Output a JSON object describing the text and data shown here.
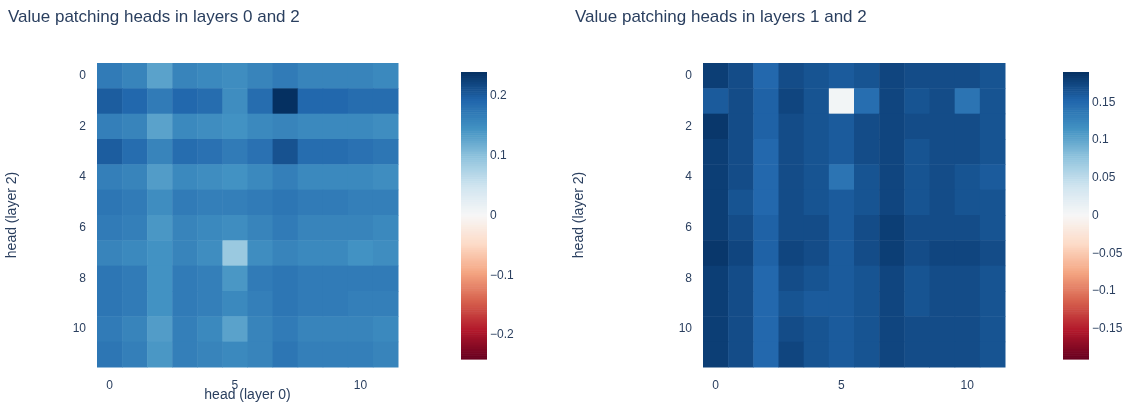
{
  "chart_data": [
    {
      "type": "heatmap",
      "title": "Value patching heads in layers 0 and 2",
      "xlabel": "head (layer 0)",
      "ylabel": "head (layer 2)",
      "categories": [
        "0",
        null,
        null,
        null,
        null,
        "5",
        null,
        null,
        null,
        null,
        "10",
        null
      ],
      "y_categories": [
        "0",
        null,
        "2",
        null,
        "4",
        null,
        "6",
        null,
        "8",
        null,
        "10",
        null
      ],
      "clim": [
        -0.24,
        0.24
      ],
      "cticks": [
        -0.2,
        -0.1,
        0,
        0.1,
        0.2
      ],
      "cells": [
        [
          0.17,
          0.16,
          0.13,
          0.16,
          0.155,
          0.15,
          0.16,
          0.17,
          0.16,
          0.16,
          0.16,
          0.155
        ],
        [
          0.2,
          0.19,
          0.17,
          0.19,
          0.185,
          0.15,
          0.185,
          0.24,
          0.19,
          0.19,
          0.185,
          0.185
        ],
        [
          0.165,
          0.16,
          0.13,
          0.155,
          0.15,
          0.145,
          0.155,
          0.16,
          0.155,
          0.155,
          0.155,
          0.15
        ],
        [
          0.2,
          0.185,
          0.16,
          0.185,
          0.18,
          0.17,
          0.18,
          0.21,
          0.185,
          0.185,
          0.18,
          0.175
        ],
        [
          0.165,
          0.16,
          0.135,
          0.155,
          0.15,
          0.145,
          0.155,
          0.165,
          0.155,
          0.155,
          0.155,
          0.15
        ],
        [
          0.175,
          0.17,
          0.15,
          0.17,
          0.165,
          0.165,
          0.17,
          0.175,
          0.17,
          0.17,
          0.165,
          0.165
        ],
        [
          0.17,
          0.165,
          0.14,
          0.16,
          0.155,
          0.15,
          0.16,
          0.17,
          0.16,
          0.16,
          0.16,
          0.155
        ],
        [
          0.16,
          0.155,
          0.145,
          0.16,
          0.15,
          0.09,
          0.15,
          0.16,
          0.155,
          0.155,
          0.145,
          0.15
        ],
        [
          0.175,
          0.17,
          0.145,
          0.17,
          0.165,
          0.14,
          0.17,
          0.175,
          0.17,
          0.17,
          0.17,
          0.17
        ],
        [
          0.175,
          0.17,
          0.145,
          0.17,
          0.165,
          0.155,
          0.165,
          0.175,
          0.17,
          0.17,
          0.165,
          0.165
        ],
        [
          0.17,
          0.16,
          0.135,
          0.165,
          0.155,
          0.13,
          0.16,
          0.17,
          0.16,
          0.16,
          0.16,
          0.155
        ],
        [
          0.175,
          0.165,
          0.14,
          0.165,
          0.16,
          0.155,
          0.16,
          0.175,
          0.165,
          0.165,
          0.165,
          0.16
        ]
      ]
    },
    {
      "type": "heatmap",
      "title": "Value patching heads in layers 1 and 2",
      "ylabel": "head (layer 2)",
      "categories": [
        "0",
        null,
        null,
        null,
        null,
        "5",
        null,
        null,
        null,
        null,
        "10",
        null
      ],
      "y_categories": [
        "0",
        null,
        "2",
        null,
        "4",
        null,
        "6",
        null,
        "8",
        null,
        "10",
        null
      ],
      "clim": [
        -0.19,
        0.19
      ],
      "cticks": [
        -0.15,
        -0.1,
        -0.05,
        0,
        0.05,
        0.1,
        0.15
      ],
      "cells": [
        [
          0.18,
          0.17,
          0.15,
          0.17,
          0.165,
          0.16,
          0.165,
          0.175,
          0.17,
          0.17,
          0.17,
          0.165
        ],
        [
          0.16,
          0.17,
          0.155,
          0.175,
          0.165,
          0.005,
          0.145,
          0.175,
          0.165,
          0.17,
          0.14,
          0.165
        ],
        [
          0.185,
          0.17,
          0.155,
          0.17,
          0.165,
          0.16,
          0.17,
          0.175,
          0.17,
          0.17,
          0.17,
          0.165
        ],
        [
          0.18,
          0.17,
          0.15,
          0.17,
          0.165,
          0.16,
          0.17,
          0.175,
          0.165,
          0.17,
          0.17,
          0.165
        ],
        [
          0.18,
          0.17,
          0.15,
          0.17,
          0.165,
          0.14,
          0.165,
          0.175,
          0.165,
          0.17,
          0.165,
          0.16
        ],
        [
          0.18,
          0.165,
          0.15,
          0.17,
          0.165,
          0.16,
          0.165,
          0.175,
          0.165,
          0.17,
          0.165,
          0.165
        ],
        [
          0.18,
          0.17,
          0.155,
          0.17,
          0.17,
          0.16,
          0.17,
          0.18,
          0.17,
          0.17,
          0.17,
          0.165
        ],
        [
          0.185,
          0.175,
          0.155,
          0.175,
          0.17,
          0.16,
          0.17,
          0.18,
          0.17,
          0.175,
          0.175,
          0.17
        ],
        [
          0.18,
          0.17,
          0.15,
          0.17,
          0.165,
          0.16,
          0.165,
          0.175,
          0.165,
          0.17,
          0.17,
          0.165
        ],
        [
          0.18,
          0.17,
          0.15,
          0.165,
          0.16,
          0.16,
          0.165,
          0.175,
          0.165,
          0.17,
          0.17,
          0.165
        ],
        [
          0.18,
          0.17,
          0.15,
          0.17,
          0.165,
          0.16,
          0.165,
          0.175,
          0.17,
          0.17,
          0.17,
          0.165
        ],
        [
          0.18,
          0.17,
          0.15,
          0.175,
          0.165,
          0.16,
          0.165,
          0.175,
          0.17,
          0.17,
          0.17,
          0.165
        ]
      ]
    }
  ]
}
